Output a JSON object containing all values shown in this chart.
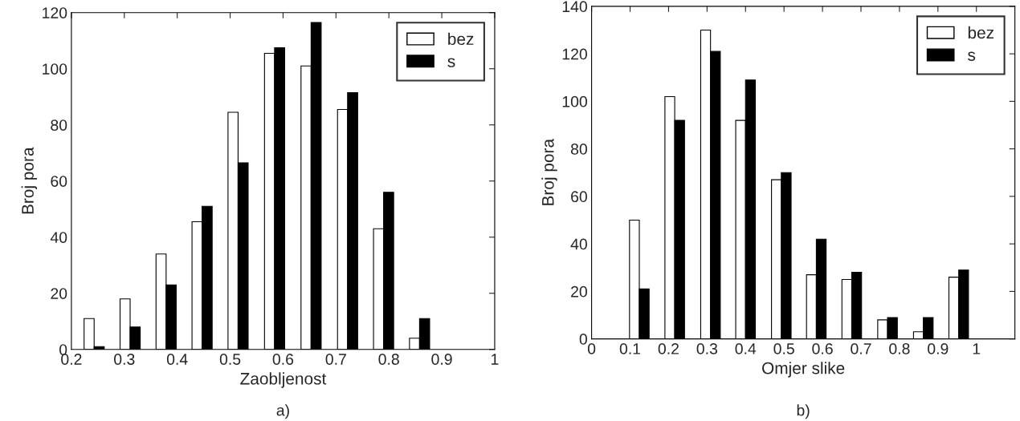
{
  "chart_data": [
    {
      "type": "bar",
      "xlabel": "Zaobljenost",
      "ylabel": "Broj pora",
      "annotations": [
        "a)"
      ],
      "x": [
        0.243,
        0.311,
        0.379,
        0.447,
        0.515,
        0.584,
        0.653,
        0.722,
        0.79,
        0.858
      ],
      "series": [
        {
          "name": "bez",
          "color": "#ffffff",
          "values": [
            11,
            18,
            34,
            45.5,
            84.5,
            105.5,
            101,
            85.5,
            43,
            4
          ]
        },
        {
          "name": "s",
          "color": "#000000",
          "values": [
            1,
            8,
            23,
            51,
            66.5,
            107.5,
            116.5,
            91.5,
            56,
            11
          ]
        }
      ],
      "xlim": [
        0.2,
        1.0
      ],
      "xticks": [
        0.2,
        0.3,
        0.4,
        0.5,
        0.6,
        0.7,
        0.8,
        0.9,
        1
      ],
      "ylim": [
        0,
        120
      ],
      "yticks": [
        0,
        20,
        40,
        60,
        80,
        100,
        120
      ],
      "grid": false,
      "legend": "top right"
    },
    {
      "type": "bar",
      "xlabel": "Omjer slike",
      "ylabel": "Broj pora",
      "annotations": [
        "b)"
      ],
      "x": [
        0.124,
        0.216,
        0.309,
        0.4,
        0.493,
        0.584,
        0.676,
        0.769,
        0.862,
        0.954
      ],
      "series": [
        {
          "name": "bez",
          "color": "#ffffff",
          "values": [
            50,
            102,
            130,
            92,
            67,
            27,
            25,
            8,
            3,
            26
          ]
        },
        {
          "name": "s",
          "color": "#000000",
          "values": [
            21,
            92,
            121,
            109,
            70,
            42,
            28,
            9,
            9,
            29
          ]
        }
      ],
      "xlim": [
        0,
        1.1
      ],
      "xticks": [
        0,
        0.1,
        0.2,
        0.3,
        0.4,
        0.5,
        0.6,
        0.7,
        0.8,
        0.9,
        1
      ],
      "ylim": [
        0,
        140
      ],
      "yticks": [
        0,
        20,
        40,
        60,
        80,
        100,
        120,
        140
      ],
      "grid": false,
      "legend": "top right"
    }
  ]
}
